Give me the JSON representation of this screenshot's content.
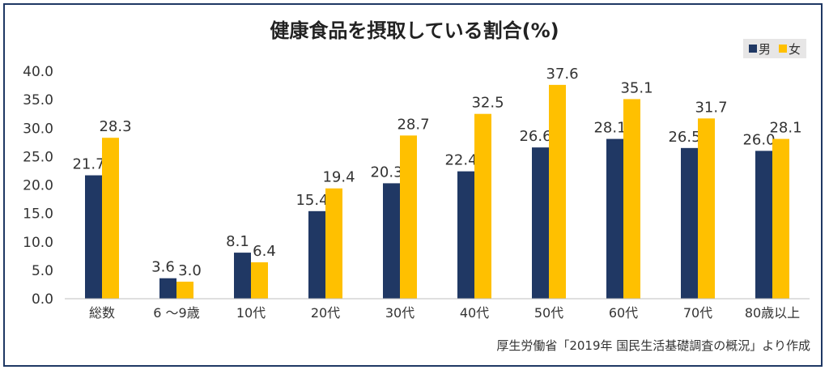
{
  "chart_data": {
    "type": "bar",
    "title": "健康食品を摂取している割合(%)",
    "categories": [
      "総数",
      "6 ～9歳",
      "10代",
      "20代",
      "30代",
      "40代",
      "50代",
      "60代",
      "70代",
      "80歳以上"
    ],
    "series": [
      {
        "name": "男",
        "color": "#203864",
        "values": [
          21.7,
          3.6,
          8.1,
          15.4,
          20.3,
          22.4,
          26.6,
          28.1,
          26.5,
          26.0
        ]
      },
      {
        "name": "女",
        "color": "#ffc000",
        "values": [
          28.3,
          3.0,
          6.4,
          19.4,
          28.7,
          32.5,
          37.6,
          35.1,
          31.7,
          28.1
        ]
      }
    ],
    "ylim": [
      0,
      40
    ],
    "yticks": [
      "0.0",
      "5.0",
      "10.0",
      "15.0",
      "20.0",
      "25.0",
      "30.0",
      "35.0",
      "40.0"
    ],
    "grid": false,
    "legend_position": "top-right",
    "source": "厚生労働省「2019年 国民生活基礎調査の概況」より作成"
  }
}
